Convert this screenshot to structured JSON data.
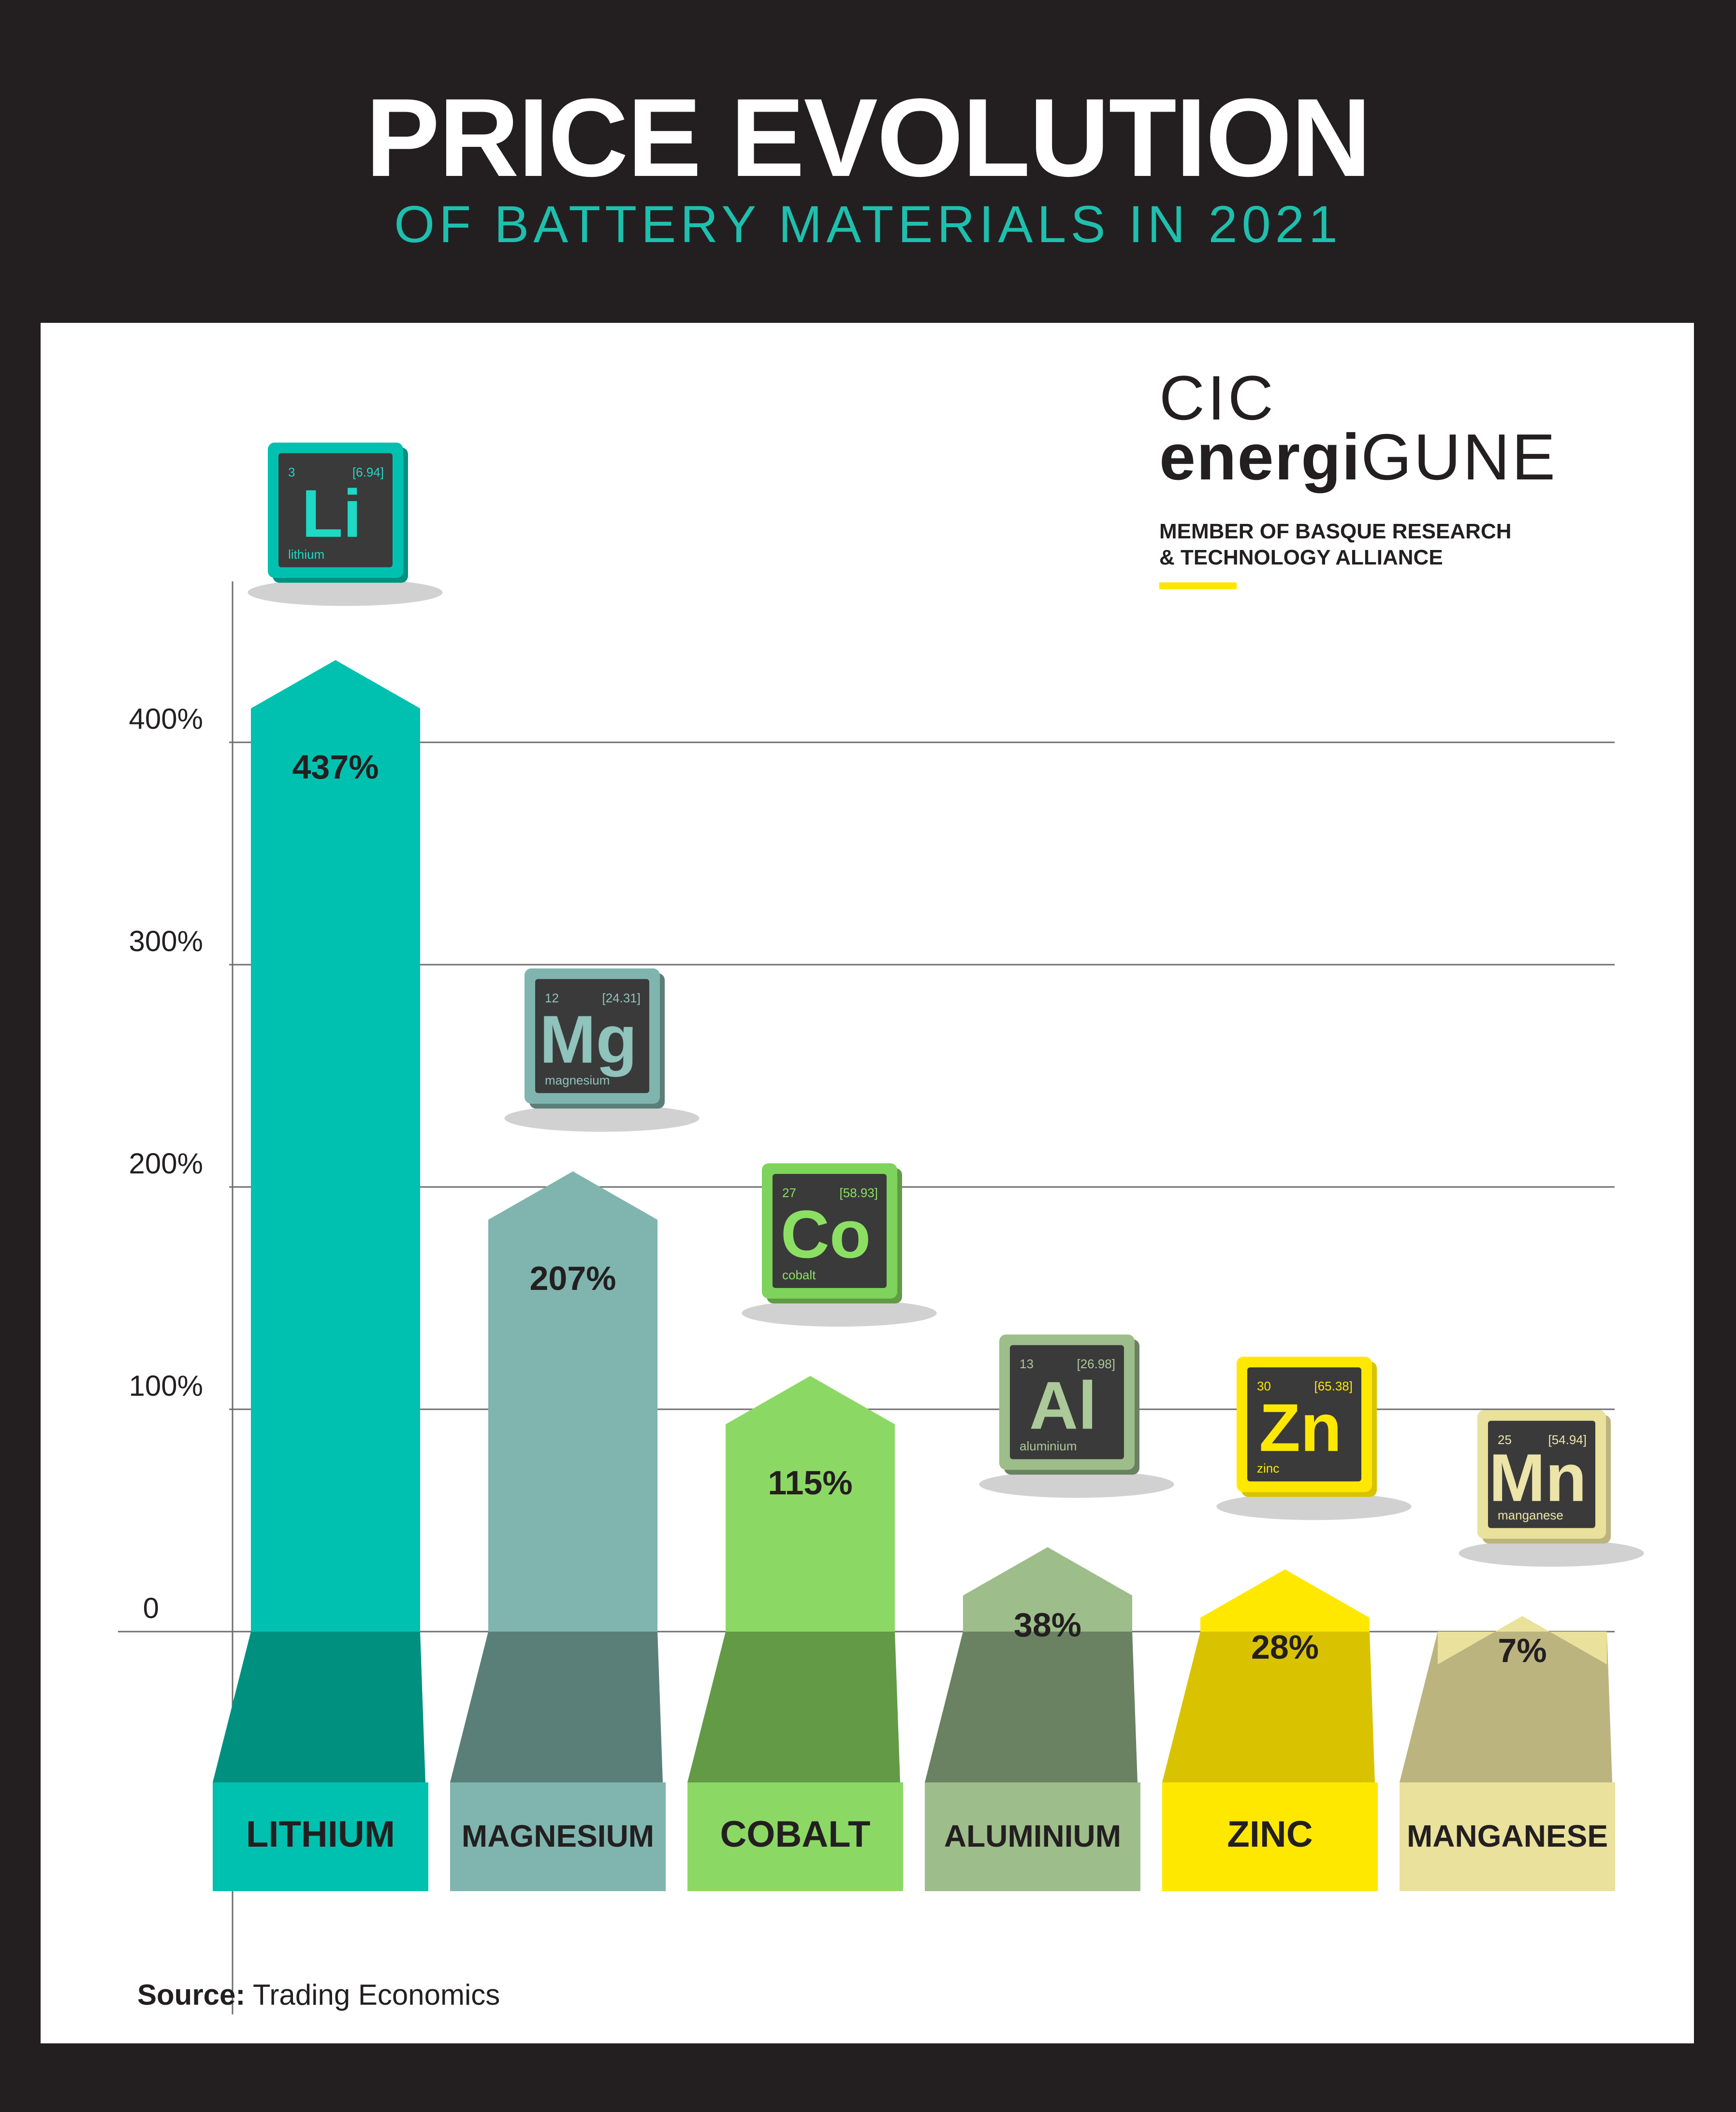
{
  "header": {
    "title": "PRICE EVOLUTION",
    "subtitle": "OF BATTERY MATERIALS IN 2021"
  },
  "brand": {
    "line1": "CIC",
    "line2_bold": "energi",
    "line2_regular": "GUNE",
    "member_line1": "MEMBER OF BASQUE RESEARCH",
    "member_line2": "& TECHNOLOGY ALLIANCE"
  },
  "source": {
    "label": "Source:",
    "text": "Trading Economics"
  },
  "chart_data": {
    "type": "bar",
    "categories": [
      "LITHIUM",
      "MAGNESIUM",
      "COBALT",
      "ALUMINIUM",
      "ZINC",
      "MANGANESE"
    ],
    "values": [
      437,
      207,
      115,
      38,
      28,
      7
    ],
    "value_labels": [
      "437%",
      "207%",
      "115%",
      "38%",
      "28%",
      "7%"
    ],
    "y_ticks": [
      0,
      100,
      200,
      300,
      400
    ],
    "y_tick_labels": [
      "0",
      "100%",
      "200%",
      "300%",
      "400%"
    ],
    "ylim": [
      0,
      440
    ],
    "grid": true,
    "colors": {
      "bars": [
        "#00c1b0",
        "#7fb5ae",
        "#8cd864",
        "#9dbd8a",
        "#ffe800",
        "#e9e19c"
      ],
      "bases": [
        "#00907f",
        "#5a7f78",
        "#629a45",
        "#6a8162",
        "#d9c300",
        "#bcb47e"
      ]
    },
    "elements": [
      {
        "symbol": "Li",
        "number": "3",
        "mass": "[6.94]",
        "name": "lithium",
        "face": "#00c1b0",
        "text": "#1fd8c5"
      },
      {
        "symbol": "Mg",
        "number": "12",
        "mass": "[24.31]",
        "name": "magnesium",
        "face": "#7fb5ae",
        "text": "#8fc3bb"
      },
      {
        "symbol": "Co",
        "number": "27",
        "mass": "[58.93]",
        "name": "cobalt",
        "face": "#7dd35b",
        "text": "#8be063"
      },
      {
        "symbol": "Al",
        "number": "13",
        "mass": "[26.98]",
        "name": "aluminium",
        "face": "#9dbd8a",
        "text": "#acc999"
      },
      {
        "symbol": "Zn",
        "number": "30",
        "mass": "[65.38]",
        "name": "zinc",
        "face": "#ffe800",
        "text": "#ffe800"
      },
      {
        "symbol": "Mn",
        "number": "25",
        "mass": "[54.94]",
        "name": "manganese",
        "face": "#e9e19c",
        "text": "#ece4a8"
      }
    ]
  }
}
